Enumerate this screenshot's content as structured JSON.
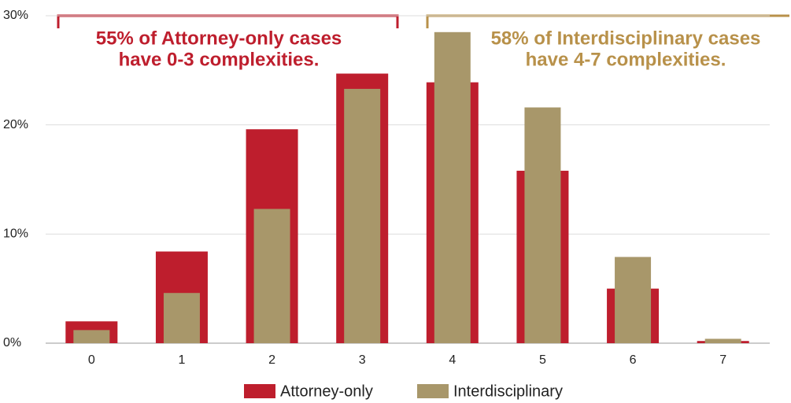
{
  "chart_data": {
    "type": "bar",
    "categories": [
      "0",
      "1",
      "2",
      "3",
      "4",
      "5",
      "6",
      "7"
    ],
    "series": [
      {
        "name": "Attorney-only",
        "color": "#be1e2d",
        "values": [
          2.0,
          8.4,
          19.6,
          24.7,
          23.9,
          15.8,
          5.0,
          0.2
        ]
      },
      {
        "name": "Interdisciplinary",
        "color": "#a8976a",
        "values": [
          1.2,
          4.6,
          12.3,
          23.3,
          28.5,
          21.6,
          7.9,
          0.4
        ]
      }
    ],
    "ylim": [
      0,
      30
    ],
    "yticks": [
      {
        "value": 0,
        "label": "0%"
      },
      {
        "value": 10,
        "label": "10%"
      },
      {
        "value": 20,
        "label": "20%"
      },
      {
        "value": 30,
        "label": "30%"
      }
    ],
    "grid": true,
    "legend": "bottom",
    "annotations": [
      {
        "lines": [
          "55% of Attorney-only cases",
          "have 0-3 complexities."
        ],
        "color": "#be1e2d"
      },
      {
        "lines": [
          "58% of Interdisciplinary cases",
          "have 4-7 complexities."
        ],
        "color": "#b8914a"
      }
    ]
  }
}
